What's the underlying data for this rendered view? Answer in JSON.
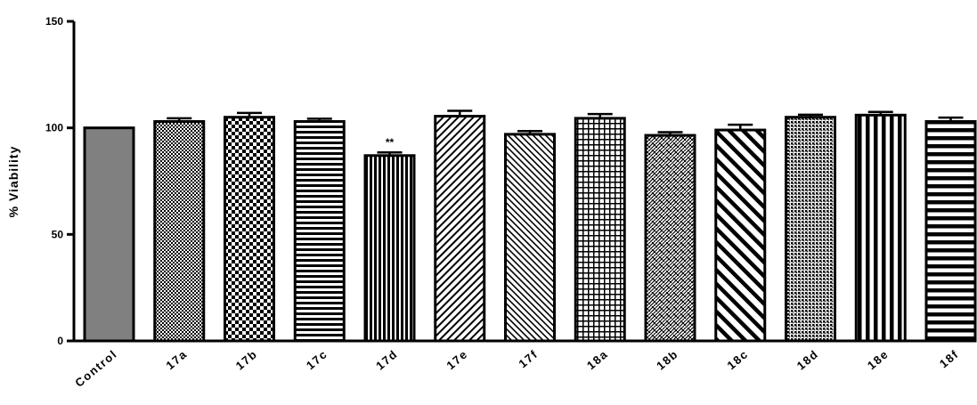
{
  "chart_data": {
    "type": "bar",
    "categories": [
      "Control",
      "17a",
      "17b",
      "17c",
      "17d",
      "17e",
      "17f",
      "18a",
      "18b",
      "18c",
      "18d",
      "18e",
      "18f"
    ],
    "values": [
      100,
      103,
      105,
      103,
      87,
      105.5,
      97,
      104.5,
      96.5,
      99,
      105,
      106,
      103
    ],
    "errors": [
      0,
      1.5,
      2,
      1.3,
      1.5,
      2.5,
      1.5,
      2,
      1.5,
      2.5,
      1.2,
      1.5,
      1.8
    ],
    "patterns": [
      "solid-gray",
      "fine-checker",
      "checker",
      "h-lines",
      "v-lines",
      "diag-up",
      "diag-down",
      "grid",
      "weave",
      "wide-diag-down",
      "dots",
      "wide-v-lines",
      "wide-h-lines"
    ],
    "annotations": [
      {
        "category": "17d",
        "text": "**"
      }
    ],
    "title": "",
    "xlabel": "",
    "ylabel": "% Viability",
    "ylim": [
      0,
      150
    ],
    "yticks": [
      0,
      50,
      100,
      150
    ],
    "grid": false,
    "colors": {
      "bar_outline": "#000000",
      "control_fill": "#808080"
    }
  }
}
